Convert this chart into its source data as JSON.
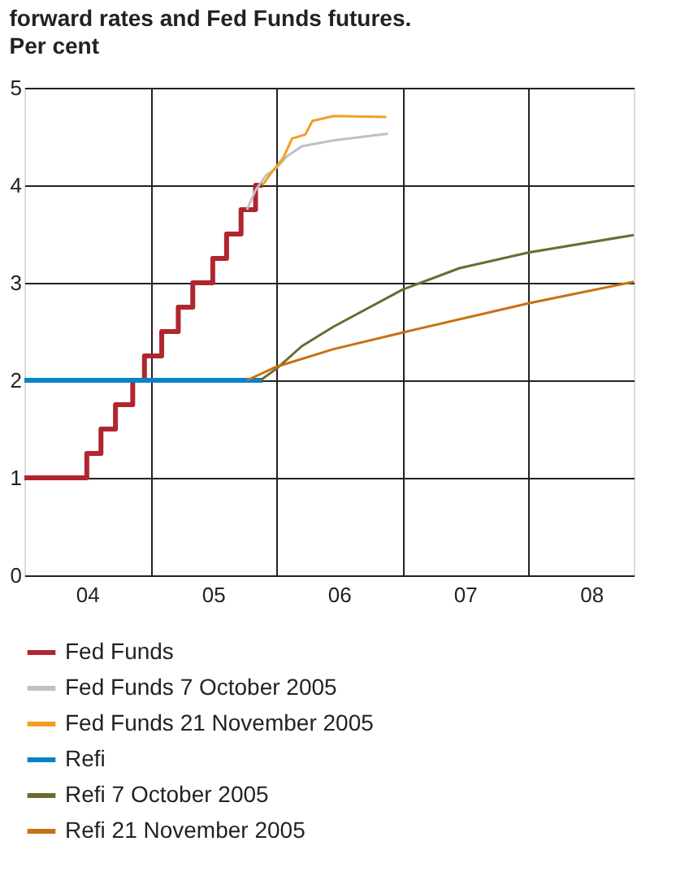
{
  "chart_data": {
    "type": "line",
    "title": "forward rates and Fed Funds futures.",
    "subtitle": "Per cent",
    "xlim": [
      "2004-01-01",
      "2008-11-01"
    ],
    "xticks": [
      {
        "value": "2004-07-01",
        "label": "04"
      },
      {
        "value": "2005-01-01",
        "label": null
      },
      {
        "value": "2005-07-01",
        "label": "05"
      },
      {
        "value": "2006-01-01",
        "label": null
      },
      {
        "value": "2006-07-01",
        "label": "06"
      },
      {
        "value": "2007-01-01",
        "label": null
      },
      {
        "value": "2007-07-01",
        "label": "07"
      },
      {
        "value": "2008-01-01",
        "label": null
      },
      {
        "value": "2008-07-01",
        "label": "08"
      }
    ],
    "ylim": [
      0,
      5
    ],
    "yticks": [
      0,
      1,
      2,
      3,
      4,
      5
    ],
    "grid": true,
    "legend": "bottom",
    "series": [
      {
        "name": "Fed Funds",
        "type": "step",
        "color": "#b0262e",
        "x": [
          "2004-01-01",
          "2004-06-30",
          "2004-08-10",
          "2004-09-21",
          "2004-11-10",
          "2004-12-14",
          "2005-02-02",
          "2005-03-22",
          "2005-05-03",
          "2005-06-30",
          "2005-08-09",
          "2005-09-20",
          "2005-11-01",
          "2005-11-21"
        ],
        "values": [
          1.0,
          1.25,
          1.5,
          1.75,
          2.0,
          2.25,
          2.5,
          2.75,
          3.0,
          3.25,
          3.5,
          3.75,
          4.0,
          4.0
        ]
      },
      {
        "name": "Fed Funds 7 October 2005",
        "color": "#c0c0c0",
        "x": [
          "2005-10-07",
          "2005-11-01",
          "2005-12-01",
          "2006-01-01",
          "2006-02-01",
          "2006-03-15",
          "2006-06-15",
          "2006-11-20"
        ],
        "values": [
          3.75,
          3.95,
          4.1,
          4.18,
          4.3,
          4.4,
          4.46,
          4.53
        ]
      },
      {
        "name": "Fed Funds 21 November 2005",
        "color": "#f0a020",
        "x": [
          "2005-11-21",
          "2005-12-15",
          "2006-01-20",
          "2006-02-15",
          "2006-03-25",
          "2006-04-15",
          "2006-06-15",
          "2006-11-15"
        ],
        "values": [
          4.0,
          4.12,
          4.28,
          4.48,
          4.52,
          4.66,
          4.71,
          4.7
        ]
      },
      {
        "name": "Refi",
        "color": "#0a82c8",
        "x": [
          "2004-01-01",
          "2005-11-21"
        ],
        "values": [
          2.0,
          2.0
        ]
      },
      {
        "name": "Refi 7 October 2005",
        "color": "#6b6b30",
        "x": [
          "2005-11-15",
          "2006-01-01",
          "2006-03-15",
          "2006-06-15",
          "2007-01-01",
          "2007-06-15",
          "2008-01-01",
          "2008-11-01"
        ],
        "values": [
          2.0,
          2.12,
          2.35,
          2.55,
          2.93,
          3.15,
          3.31,
          3.49
        ]
      },
      {
        "name": "Refi 21 November 2005",
        "color": "#c87010",
        "x": [
          "2005-10-07",
          "2006-01-01",
          "2006-06-15",
          "2007-01-01",
          "2008-01-01",
          "2008-11-01"
        ],
        "values": [
          2.0,
          2.14,
          2.32,
          2.49,
          2.79,
          3.01
        ]
      }
    ]
  }
}
